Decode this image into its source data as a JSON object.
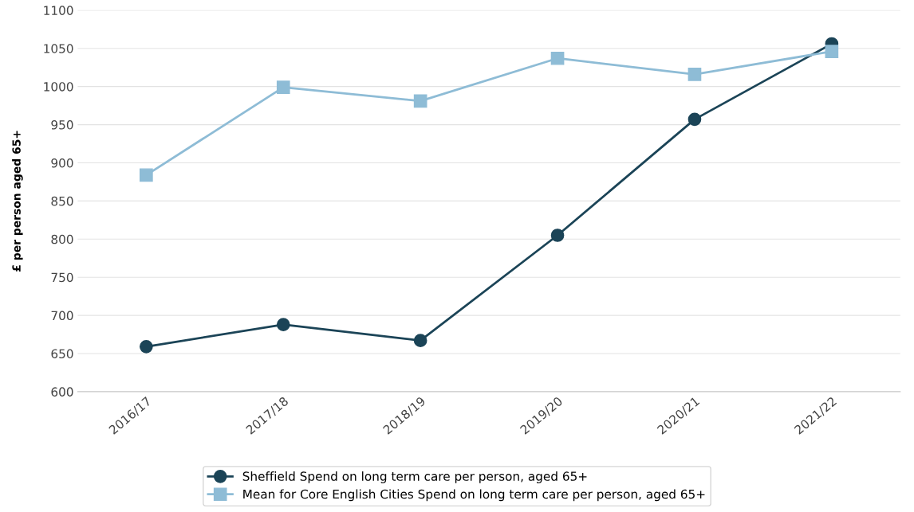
{
  "chart_data": {
    "type": "line",
    "ylabel": "£ per person aged 65+",
    "categories": [
      "2016/17",
      "2017/18",
      "2018/19",
      "2019/20",
      "2020/21",
      "2021/22"
    ],
    "series": [
      {
        "name": "Sheffield Spend on long term care per person, aged 65+",
        "color": "#1b4457",
        "marker": "circle",
        "values": [
          659,
          688,
          667,
          805,
          957,
          1056
        ]
      },
      {
        "name": "Mean for Core English Cities Spend on long term care per person, aged 65+",
        "color": "#8ebcd6",
        "marker": "square",
        "values": [
          884,
          999,
          981,
          1037,
          1016,
          1046
        ]
      }
    ],
    "ylim": [
      600,
      1100
    ],
    "yticks": [
      600,
      650,
      700,
      750,
      800,
      850,
      900,
      950,
      1000,
      1050,
      1100
    ],
    "grid": "y",
    "legend": "bottom"
  }
}
